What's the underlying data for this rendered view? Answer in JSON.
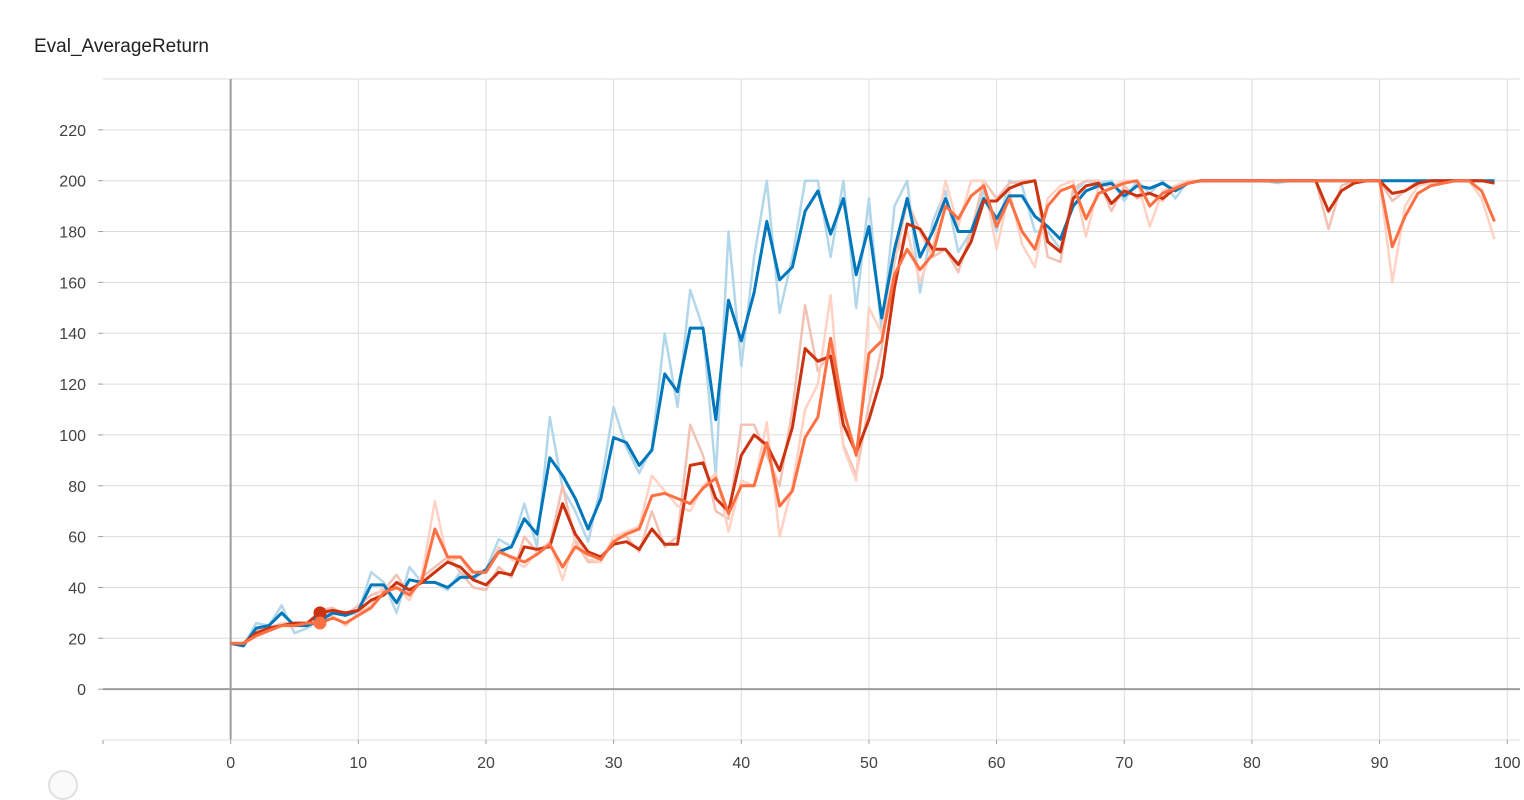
{
  "chart_data": {
    "type": "line",
    "title": "Eval_AverageReturn",
    "xlabel": "",
    "ylabel": "",
    "xlim": [
      -10,
      101
    ],
    "ylim": [
      -20,
      240
    ],
    "xticks": [
      0,
      10,
      20,
      30,
      40,
      50,
      60,
      70,
      80,
      90,
      100
    ],
    "yticks": [
      0,
      20,
      40,
      60,
      80,
      100,
      120,
      140,
      160,
      180,
      200,
      220
    ],
    "grid": true,
    "legend": "none",
    "hover_x": 7,
    "series": [
      {
        "color": "#0077bb",
        "raw_color": "#b3d7ea",
        "x": [
          0,
          1,
          2,
          3,
          4,
          5,
          6,
          7,
          8,
          9,
          10,
          11,
          12,
          13,
          14,
          15,
          16,
          17,
          18,
          19,
          20,
          21,
          22,
          23,
          24,
          25,
          26,
          27,
          28,
          29,
          30,
          31,
          32,
          33,
          34,
          35,
          36,
          37,
          38,
          39,
          40,
          41,
          42,
          43,
          44,
          45,
          46,
          47,
          48,
          49,
          50,
          51,
          52,
          53,
          54,
          55,
          56,
          57,
          58,
          59,
          60,
          61,
          62,
          63,
          64,
          65,
          66,
          67,
          68,
          69,
          70,
          71,
          72,
          73,
          74,
          75,
          76,
          77,
          78,
          79,
          80,
          81,
          82,
          83,
          84,
          85,
          86,
          87,
          88,
          89,
          90,
          91,
          92,
          93,
          94,
          95,
          96,
          97,
          98,
          99
        ],
        "values": [
          18,
          17,
          24,
          25,
          30,
          25,
          25,
          27,
          30,
          29,
          31,
          41,
          41,
          34,
          43,
          42,
          42,
          40,
          44,
          44,
          47,
          54,
          56,
          67,
          61,
          91,
          84,
          75,
          63,
          75,
          99,
          97,
          88,
          94,
          124,
          117,
          142,
          142,
          106,
          153,
          137,
          156,
          184,
          161,
          166,
          188,
          196,
          179,
          193,
          163,
          182,
          146,
          173,
          193,
          170,
          180,
          193,
          180,
          180,
          193,
          185,
          194,
          194,
          186,
          182,
          177,
          190,
          196,
          198,
          199,
          194,
          198,
          197,
          199,
          196,
          199,
          200,
          200,
          200,
          200,
          200,
          200,
          200,
          200,
          200,
          200,
          200,
          200,
          200,
          200,
          200,
          200,
          200,
          200,
          200,
          200,
          200,
          200,
          200,
          200
        ],
        "raw": [
          18,
          17,
          26,
          25,
          33,
          22,
          24,
          27,
          31,
          29,
          30,
          46,
          42,
          30,
          48,
          42,
          42,
          39,
          46,
          43,
          47,
          59,
          56,
          73,
          56,
          107,
          79,
          70,
          58,
          80,
          111,
          95,
          85,
          95,
          140,
          111,
          157,
          142,
          84,
          180,
          127,
          170,
          200,
          148,
          170,
          200,
          200,
          170,
          200,
          150,
          193,
          140,
          190,
          200,
          156,
          184,
          196,
          172,
          180,
          196,
          180,
          200,
          198,
          180,
          180,
          173,
          195,
          200,
          199,
          200,
          192,
          200,
          195,
          200,
          193,
          200,
          200,
          200,
          200,
          200,
          200,
          200,
          199,
          200,
          200,
          200,
          200,
          200,
          200,
          200,
          200,
          200,
          200,
          200,
          200,
          200,
          200,
          200,
          200,
          199
        ]
      },
      {
        "color": "#cc3311",
        "raw_color": "#f2c2b4",
        "x": [
          0,
          1,
          2,
          3,
          4,
          5,
          6,
          7,
          8,
          9,
          10,
          11,
          12,
          13,
          14,
          15,
          16,
          17,
          18,
          19,
          20,
          21,
          22,
          23,
          24,
          25,
          26,
          27,
          28,
          29,
          30,
          31,
          32,
          33,
          34,
          35,
          36,
          37,
          38,
          39,
          40,
          41,
          42,
          43,
          44,
          45,
          46,
          47,
          48,
          49,
          50,
          51,
          52,
          53,
          54,
          55,
          56,
          57,
          58,
          59,
          60,
          61,
          62,
          63,
          64,
          65,
          66,
          67,
          68,
          69,
          70,
          71,
          72,
          73,
          74,
          75,
          76,
          77,
          78,
          79,
          80,
          81,
          82,
          83,
          84,
          85,
          86,
          87,
          88,
          89,
          90,
          91,
          92,
          93,
          94,
          95,
          96,
          97,
          98,
          99
        ],
        "values": [
          18,
          18,
          22,
          24,
          25,
          26,
          26,
          30,
          31,
          30,
          31,
          35,
          37,
          42,
          39,
          42,
          46,
          50,
          48,
          43,
          41,
          46,
          45,
          56,
          55,
          56,
          73,
          61,
          54,
          52,
          57,
          58,
          55,
          63,
          57,
          57,
          88,
          89,
          75,
          70,
          92,
          100,
          96,
          86,
          103,
          134,
          129,
          131,
          104,
          93,
          106,
          123,
          158,
          183,
          181,
          173,
          173,
          167,
          176,
          192,
          192,
          197,
          199,
          200,
          176,
          172,
          193,
          198,
          199,
          191,
          196,
          194,
          195,
          193,
          197,
          199,
          200,
          200,
          200,
          200,
          200,
          200,
          200,
          200,
          200,
          200,
          188,
          196,
          199,
          200,
          200,
          195,
          196,
          199,
          200,
          200,
          200,
          200,
          200,
          199
        ],
        "raw": [
          18,
          18,
          23,
          24,
          26,
          26,
          26,
          31,
          32,
          29,
          33,
          37,
          39,
          45,
          37,
          44,
          48,
          52,
          46,
          40,
          39,
          48,
          44,
          60,
          54,
          57,
          80,
          58,
          50,
          50,
          60,
          60,
          54,
          70,
          56,
          60,
          104,
          92,
          70,
          67,
          104,
          104,
          92,
          80,
          110,
          151,
          125,
          133,
          96,
          84,
          112,
          134,
          168,
          192,
          180,
          170,
          173,
          164,
          180,
          200,
          193,
          199,
          200,
          200,
          170,
          168,
          197,
          200,
          200,
          188,
          198,
          193,
          195,
          192,
          198,
          200,
          200,
          200,
          200,
          200,
          200,
          200,
          200,
          200,
          200,
          200,
          181,
          198,
          200,
          200,
          200,
          192,
          196,
          200,
          200,
          200,
          200,
          200,
          200,
          199
        ]
      },
      {
        "color": "#ff7043",
        "raw_color": "#ffd2c4",
        "x": [
          0,
          1,
          2,
          3,
          4,
          5,
          6,
          7,
          8,
          9,
          10,
          11,
          12,
          13,
          14,
          15,
          16,
          17,
          18,
          19,
          20,
          21,
          22,
          23,
          24,
          25,
          26,
          27,
          28,
          29,
          30,
          31,
          32,
          33,
          34,
          35,
          36,
          37,
          38,
          39,
          40,
          41,
          42,
          43,
          44,
          45,
          46,
          47,
          48,
          49,
          50,
          51,
          52,
          53,
          54,
          55,
          56,
          57,
          58,
          59,
          60,
          61,
          62,
          63,
          64,
          65,
          66,
          67,
          68,
          69,
          70,
          71,
          72,
          73,
          74,
          75,
          76,
          77,
          78,
          79,
          80,
          81,
          82,
          83,
          84,
          85,
          86,
          87,
          88,
          89,
          90,
          91,
          92,
          93,
          94,
          95,
          96,
          97,
          98,
          99
        ],
        "values": [
          18,
          18,
          21,
          23,
          25,
          25,
          26,
          26,
          28,
          26,
          29,
          32,
          38,
          40,
          37,
          43,
          63,
          52,
          52,
          46,
          46,
          54,
          52,
          50,
          53,
          57,
          48,
          56,
          53,
          51,
          58,
          61,
          63,
          76,
          77,
          75,
          73,
          79,
          83,
          69,
          80,
          80,
          97,
          72,
          78,
          99,
          107,
          138,
          110,
          92,
          132,
          137,
          163,
          173,
          165,
          171,
          190,
          185,
          194,
          198,
          182,
          193,
          180,
          173,
          190,
          196,
          198,
          185,
          195,
          197,
          199,
          200,
          190,
          195,
          197,
          199,
          200,
          200,
          200,
          200,
          200,
          200,
          200,
          200,
          200,
          200,
          200,
          200,
          200,
          200,
          200,
          174,
          186,
          195,
          198,
          199,
          200,
          200,
          196,
          184
        ],
        "raw": [
          18,
          18,
          22,
          23,
          26,
          25,
          26,
          26,
          29,
          25,
          30,
          33,
          41,
          40,
          35,
          45,
          74,
          50,
          52,
          44,
          46,
          56,
          51,
          48,
          54,
          58,
          43,
          60,
          51,
          50,
          60,
          62,
          64,
          84,
          78,
          72,
          70,
          80,
          85,
          62,
          82,
          80,
          105,
          60,
          80,
          110,
          120,
          155,
          95,
          82,
          150,
          140,
          170,
          180,
          160,
          174,
          200,
          182,
          200,
          200,
          173,
          196,
          175,
          166,
          193,
          198,
          200,
          178,
          198,
          198,
          200,
          200,
          182,
          196,
          198,
          200,
          200,
          200,
          200,
          200,
          200,
          200,
          200,
          200,
          200,
          200,
          200,
          200,
          200,
          200,
          200,
          160,
          190,
          198,
          199,
          200,
          200,
          200,
          193,
          177
        ]
      }
    ]
  }
}
